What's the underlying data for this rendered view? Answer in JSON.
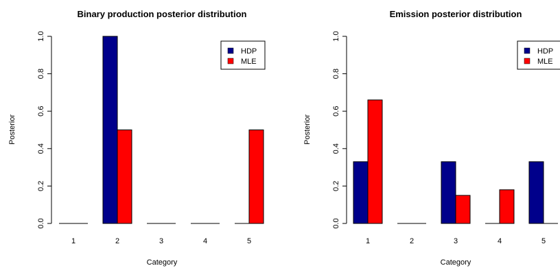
{
  "colors": {
    "HDP": "#00008B",
    "MLE": "#FF0000"
  },
  "chart_data": [
    {
      "type": "bar",
      "title": "Binary production posterior distribution",
      "xlabel": "Category",
      "ylabel": "Posterior",
      "categories": [
        "1",
        "2",
        "3",
        "4",
        "5"
      ],
      "yticks": [
        "0.0",
        "0.2",
        "0.4",
        "0.6",
        "0.8",
        "1.0"
      ],
      "ylim": [
        0,
        1
      ],
      "legend": "top-right",
      "grid": false,
      "series": [
        {
          "name": "HDP",
          "values": [
            0,
            1.0,
            0,
            0,
            0
          ]
        },
        {
          "name": "MLE",
          "values": [
            0,
            0.5,
            0,
            0,
            0.5
          ]
        }
      ]
    },
    {
      "type": "bar",
      "title": "Emission posterior distribution",
      "xlabel": "Category",
      "ylabel": "Posterior",
      "categories": [
        "1",
        "2",
        "3",
        "4",
        "5"
      ],
      "yticks": [
        "0.0",
        "0.2",
        "0.4",
        "0.6",
        "0.8",
        "1.0"
      ],
      "ylim": [
        0,
        1
      ],
      "legend": "top-right",
      "grid": false,
      "series": [
        {
          "name": "HDP",
          "values": [
            0.33,
            0,
            0.33,
            0,
            0.33
          ]
        },
        {
          "name": "MLE",
          "values": [
            0.66,
            0,
            0.15,
            0.18,
            0
          ]
        }
      ]
    }
  ]
}
